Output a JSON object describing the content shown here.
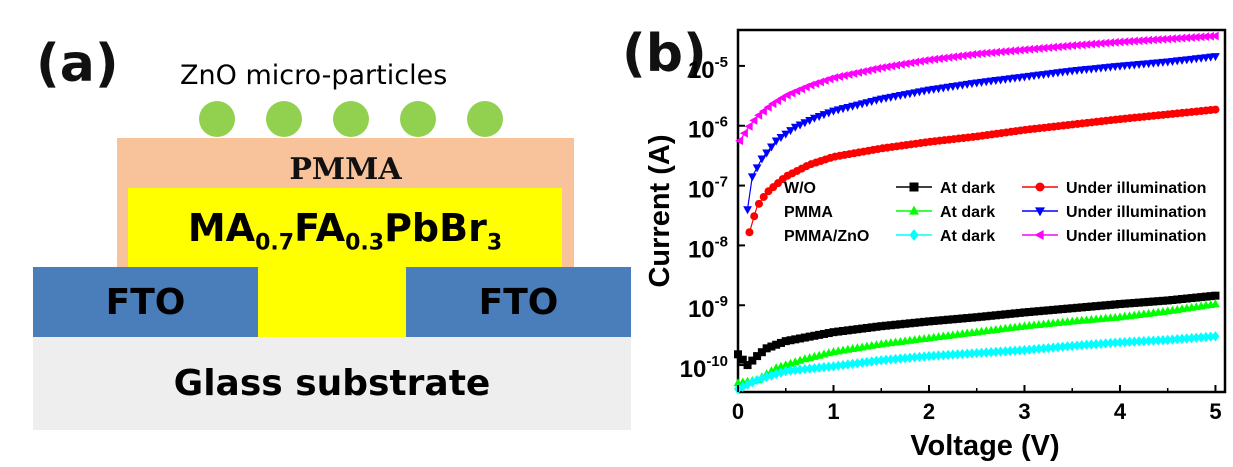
{
  "panel_a": {
    "label": "(a)",
    "particles_label": "ZnO micro-particles",
    "particle_count": 5,
    "pmma_label": "PMMA",
    "perovskite": {
      "base": "MA",
      "sub1": "0.7",
      "mid": "FA",
      "sub2": "0.3",
      "tail": "PbBr",
      "sub3": "3"
    },
    "fto_left": "FTO",
    "fto_right": "FTO",
    "substrate_label": "Glass substrate",
    "colors": {
      "particle": "#92d050",
      "pmma": "#f8c29a",
      "perovskite": "#ffff00",
      "fto": "#4a7ebb",
      "substrate": "#eeeeee"
    }
  },
  "panel_b": {
    "label": "(b)"
  },
  "chart_data": {
    "type": "scatter",
    "xlabel": "Voltage (V)",
    "ylabel": "Current (A)",
    "xlim": [
      0,
      5.1
    ],
    "ylim_log10": [
      -10.45,
      -4.4
    ],
    "yscale": "log",
    "x_ticks": [
      0,
      1,
      2,
      3,
      4,
      5
    ],
    "y_ticks": [
      {
        "base": "10",
        "exp": "-10",
        "value": -10
      },
      {
        "base": "10",
        "exp": "-9",
        "value": -9
      },
      {
        "base": "10",
        "exp": "-8",
        "value": -8
      },
      {
        "base": "10",
        "exp": "-7",
        "value": -7
      },
      {
        "base": "10",
        "exp": "-6",
        "value": -6
      },
      {
        "base": "10",
        "exp": "-5",
        "value": -5
      }
    ],
    "legend": {
      "placement": "right",
      "rows": [
        {
          "sample": "W/O",
          "dark": "At dark",
          "light": "Under illumination"
        },
        {
          "sample": "PMMA",
          "dark": "At dark",
          "light": "Under illumination"
        },
        {
          "sample": "PMMA/ZnO",
          "dark": "At dark",
          "light": "Under illumination"
        }
      ]
    },
    "series": [
      {
        "name": "W/O At dark",
        "color": "#000000",
        "marker": "square",
        "points": [
          [
            0,
            -9.82
          ],
          [
            0.1,
            -10.0
          ],
          [
            0.2,
            -9.85
          ],
          [
            0.3,
            -9.72
          ],
          [
            0.5,
            -9.6
          ],
          [
            1,
            -9.45
          ],
          [
            1.5,
            -9.35
          ],
          [
            2,
            -9.27
          ],
          [
            2.5,
            -9.2
          ],
          [
            3,
            -9.12
          ],
          [
            3.5,
            -9.05
          ],
          [
            4,
            -8.98
          ],
          [
            4.5,
            -8.92
          ],
          [
            5,
            -8.84
          ]
        ]
      },
      {
        "name": "W/O Under illumination",
        "color": "#ff0000",
        "marker": "circle",
        "points": [
          [
            0.12,
            -7.78
          ],
          [
            0.2,
            -7.35
          ],
          [
            0.3,
            -7.12
          ],
          [
            0.5,
            -6.85
          ],
          [
            0.75,
            -6.65
          ],
          [
            1,
            -6.52
          ],
          [
            1.5,
            -6.38
          ],
          [
            2,
            -6.27
          ],
          [
            2.5,
            -6.18
          ],
          [
            3,
            -6.07
          ],
          [
            3.5,
            -5.98
          ],
          [
            4,
            -5.89
          ],
          [
            4.5,
            -5.81
          ],
          [
            5,
            -5.73
          ]
        ]
      },
      {
        "name": "PMMA At dark",
        "color": "#00ff00",
        "marker": "triangle-up",
        "points": [
          [
            0,
            -10.3
          ],
          [
            0.2,
            -10.25
          ],
          [
            0.4,
            -10.05
          ],
          [
            0.7,
            -9.9
          ],
          [
            1,
            -9.78
          ],
          [
            1.5,
            -9.65
          ],
          [
            2,
            -9.55
          ],
          [
            2.5,
            -9.45
          ],
          [
            3,
            -9.35
          ],
          [
            3.5,
            -9.27
          ],
          [
            4,
            -9.2
          ],
          [
            4.5,
            -9.1
          ],
          [
            5,
            -8.98
          ]
        ]
      },
      {
        "name": "PMMA Under illumination",
        "color": "#0000ff",
        "marker": "triangle-down",
        "points": [
          [
            0.1,
            -7.4
          ],
          [
            0.15,
            -6.85
          ],
          [
            0.25,
            -6.55
          ],
          [
            0.4,
            -6.25
          ],
          [
            0.6,
            -6.02
          ],
          [
            0.8,
            -5.87
          ],
          [
            1,
            -5.75
          ],
          [
            1.5,
            -5.55
          ],
          [
            2,
            -5.4
          ],
          [
            2.5,
            -5.28
          ],
          [
            3,
            -5.18
          ],
          [
            3.5,
            -5.08
          ],
          [
            4,
            -5.0
          ],
          [
            4.5,
            -4.93
          ],
          [
            5,
            -4.84
          ]
        ]
      },
      {
        "name": "PMMA/ZnO At dark",
        "color": "#00ffff",
        "marker": "diamond",
        "points": [
          [
            0,
            -10.4
          ],
          [
            0.2,
            -10.25
          ],
          [
            0.5,
            -10.1
          ],
          [
            1,
            -10.02
          ],
          [
            1.5,
            -9.92
          ],
          [
            2,
            -9.85
          ],
          [
            2.5,
            -9.8
          ],
          [
            3,
            -9.75
          ],
          [
            3.5,
            -9.68
          ],
          [
            4,
            -9.62
          ],
          [
            4.5,
            -9.58
          ],
          [
            5,
            -9.52
          ]
        ]
      },
      {
        "name": "PMMA/ZnO Under illumination",
        "color": "#ff00ff",
        "marker": "triangle-left",
        "points": [
          [
            0.02,
            -6.25
          ],
          [
            0.1,
            -6.05
          ],
          [
            0.2,
            -5.85
          ],
          [
            0.35,
            -5.65
          ],
          [
            0.5,
            -5.5
          ],
          [
            0.75,
            -5.33
          ],
          [
            1,
            -5.2
          ],
          [
            1.5,
            -5.03
          ],
          [
            2,
            -4.9
          ],
          [
            2.5,
            -4.8
          ],
          [
            3,
            -4.73
          ],
          [
            3.5,
            -4.66
          ],
          [
            4,
            -4.6
          ],
          [
            4.5,
            -4.55
          ],
          [
            5,
            -4.5
          ]
        ]
      }
    ]
  }
}
